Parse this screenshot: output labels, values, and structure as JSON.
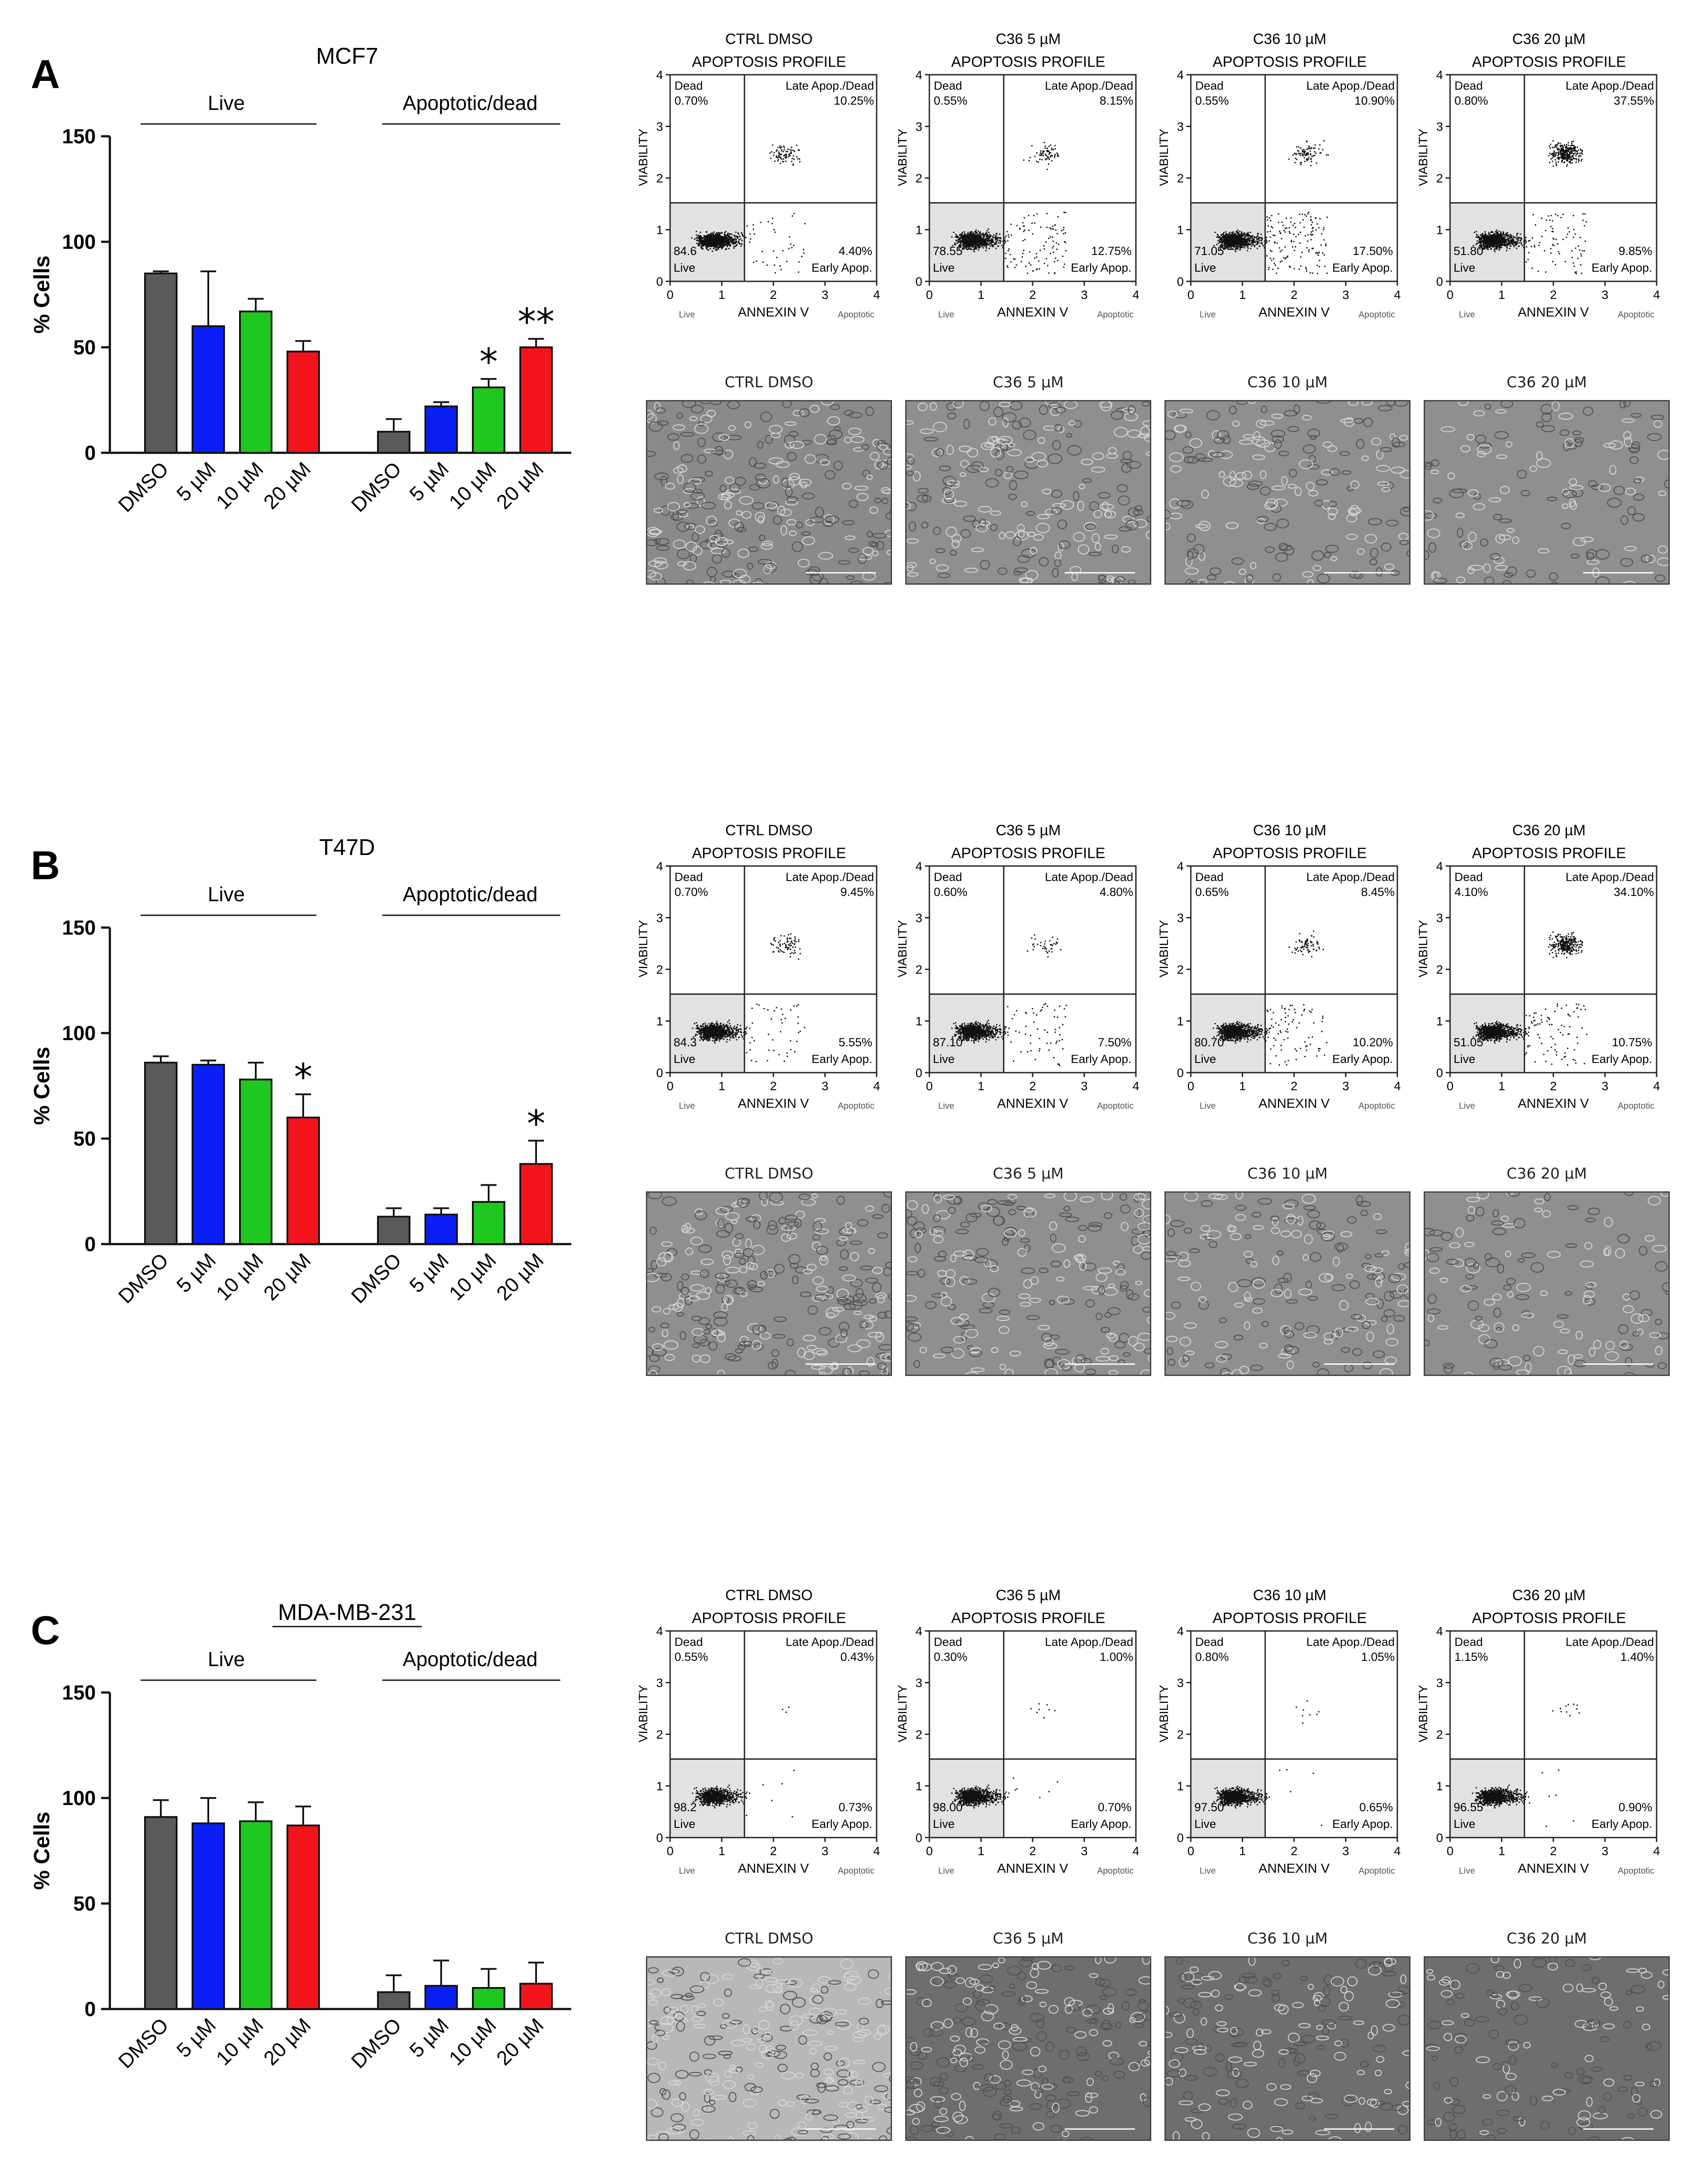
{
  "panels": [
    {
      "letter": "A",
      "cell_line": "MCF7",
      "group_live": "Live",
      "group_apop": "Apoptotic/dead",
      "ylabel": "% Cells",
      "yticks": [
        "0",
        "50",
        "100",
        "150"
      ],
      "xticks": [
        "DMSO",
        "5 µM",
        "10 µM",
        "20 µM"
      ],
      "live": {
        "values": [
          85,
          60,
          67,
          48
        ],
        "errors": [
          1,
          26,
          6,
          5
        ],
        "sig": [
          "",
          "",
          "",
          ""
        ]
      },
      "apop": {
        "values": [
          10,
          22,
          31,
          50
        ],
        "errors": [
          6,
          2,
          4,
          4
        ],
        "sig": [
          "",
          "",
          "*",
          "**"
        ]
      },
      "flow": [
        {
          "title": "CTRL DMSO",
          "dead": "0.70",
          "late": "10.25",
          "early": "4.40",
          "live": "84.6"
        },
        {
          "title": "C36 5 µM",
          "dead": "0.55",
          "late": "8.15",
          "early": "12.75",
          "live": "78.55"
        },
        {
          "title": "C36 10 µM",
          "dead": "0.55",
          "late": "10.90",
          "early": "17.50",
          "live": "71.05"
        },
        {
          "title": "C36 20 µM",
          "dead": "0.80",
          "late": "37.55",
          "early": "9.85",
          "live": "51.80"
        }
      ],
      "micro_titles": [
        "CTRL DMSO",
        "C36 5 µM",
        "C36 10 µM",
        "C36 20 µM"
      ]
    },
    {
      "letter": "B",
      "cell_line": "T47D",
      "group_live": "Live",
      "group_apop": "Apoptotic/dead",
      "ylabel": "% Cells",
      "yticks": [
        "0",
        "50",
        "100",
        "150"
      ],
      "xticks": [
        "DMSO",
        "5 µM",
        "10 µM",
        "20 µM"
      ],
      "live": {
        "values": [
          86,
          85,
          78,
          60
        ],
        "errors": [
          3,
          2,
          8,
          11
        ],
        "sig": [
          "",
          "",
          "",
          "*"
        ]
      },
      "apop": {
        "values": [
          13,
          14,
          20,
          38
        ],
        "errors": [
          4,
          3,
          8,
          11
        ],
        "sig": [
          "",
          "",
          "",
          "*"
        ]
      },
      "flow": [
        {
          "title": "CTRL DMSO",
          "dead": "0.70",
          "late": "9.45",
          "early": "5.55",
          "live": "84.3"
        },
        {
          "title": "C36 5 µM",
          "dead": "0.60",
          "late": "4.80",
          "early": "7.50",
          "live": "87.10"
        },
        {
          "title": "C36 10 µM",
          "dead": "0.65",
          "late": "8.45",
          "early": "10.20",
          "live": "80.70"
        },
        {
          "title": "C36 20 µM",
          "dead": "4.10",
          "late": "34.10",
          "early": "10.75",
          "live": "51.05"
        }
      ],
      "micro_titles": [
        "CTRL DMSO",
        "C36 5 µM",
        "C36 10 µM",
        "C36 20 µM"
      ]
    },
    {
      "letter": "C",
      "cell_line": "MDA-MB-231",
      "group_live": "Live",
      "group_apop": "Apoptotic/dead",
      "ylabel": "% Cells",
      "yticks": [
        "0",
        "50",
        "100",
        "150"
      ],
      "xticks": [
        "DMSO",
        "5 µM",
        "10 µM",
        "20 µM"
      ],
      "live": {
        "values": [
          91,
          88,
          89,
          87
        ],
        "errors": [
          8,
          12,
          9,
          9
        ],
        "sig": [
          "",
          "",
          "",
          ""
        ]
      },
      "apop": {
        "values": [
          8,
          11,
          10,
          12
        ],
        "errors": [
          8,
          12,
          9,
          10
        ],
        "sig": [
          "",
          "",
          "",
          ""
        ]
      },
      "flow": [
        {
          "title": "CTRL DMSO",
          "dead": "0.55",
          "late": "0.43",
          "early": "0.73",
          "live": "98.2"
        },
        {
          "title": "C36 5 µM",
          "dead": "0.30",
          "late": "1.00",
          "early": "0.70",
          "live": "98.00"
        },
        {
          "title": "C36 10 µM",
          "dead": "0.80",
          "late": "1.05",
          "early": "0.65",
          "live": "97.50"
        },
        {
          "title": "C36 20 µM",
          "dead": "1.15",
          "late": "1.40",
          "early": "0.90",
          "live": "96.55"
        }
      ],
      "micro_titles": [
        "CTRL DMSO",
        "C36 5 µM",
        "C36 10 µM",
        "C36 20 µM"
      ]
    }
  ],
  "flow_labels": {
    "header": "APOPTOSIS PROFILE",
    "dead": "Dead",
    "late": "Late Apop./Dead",
    "early_label": "Early Apop.",
    "live_label": "Live",
    "xaxis": "ANNEXIN V",
    "yaxis": "VIABILITY",
    "x_live": "Live",
    "x_apop": "Apoptotic",
    "pct": "%",
    "ticks": [
      "0",
      "1",
      "2",
      "3",
      "4"
    ]
  },
  "colors": {
    "bars": [
      "#5a5a5a",
      "#0b1ff5",
      "#1ec81e",
      "#f2141a"
    ],
    "text": "#111111",
    "live_quadrant": "#e2e2e2"
  },
  "chart_data": [
    {
      "type": "bar",
      "title": "MCF7",
      "ylabel": "% Cells",
      "ylim": [
        0,
        150
      ],
      "categories": [
        "DMSO",
        "5 µM",
        "10 µM",
        "20 µM"
      ],
      "series": [
        {
          "name": "Live",
          "values": [
            85,
            60,
            67,
            48
          ]
        },
        {
          "name": "Apoptotic/dead",
          "values": [
            10,
            22,
            31,
            50
          ]
        }
      ]
    },
    {
      "type": "bar",
      "title": "T47D",
      "ylabel": "% Cells",
      "ylim": [
        0,
        150
      ],
      "categories": [
        "DMSO",
        "5 µM",
        "10 µM",
        "20 µM"
      ],
      "series": [
        {
          "name": "Live",
          "values": [
            86,
            85,
            78,
            60
          ]
        },
        {
          "name": "Apoptotic/dead",
          "values": [
            13,
            14,
            20,
            38
          ]
        }
      ]
    },
    {
      "type": "bar",
      "title": "MDA-MB-231",
      "ylabel": "% Cells",
      "ylim": [
        0,
        150
      ],
      "categories": [
        "DMSO",
        "5 µM",
        "10 µM",
        "20 µM"
      ],
      "series": [
        {
          "name": "Live",
          "values": [
            91,
            88,
            89,
            87
          ]
        },
        {
          "name": "Apoptotic/dead",
          "values": [
            8,
            11,
            10,
            12
          ]
        }
      ]
    }
  ]
}
